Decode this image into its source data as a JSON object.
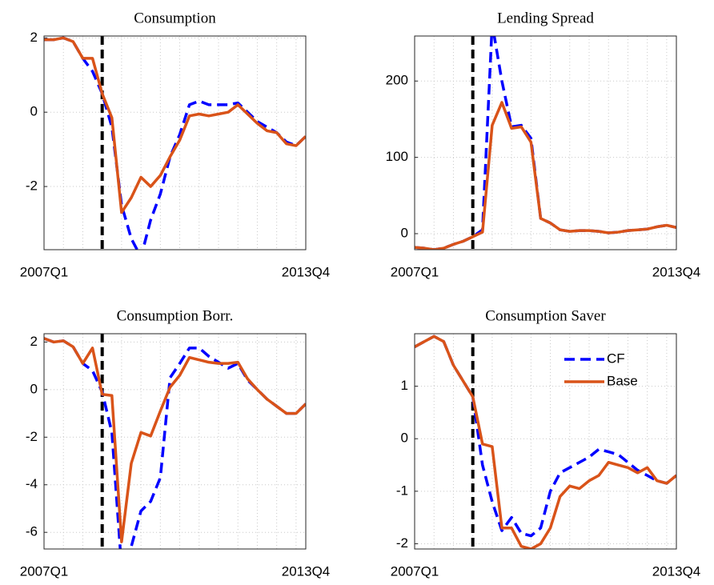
{
  "chart_data": [
    {
      "type": "line",
      "title": "Consumption",
      "categories": [
        "2007Q1",
        null,
        null,
        null,
        null,
        null,
        null,
        null,
        null,
        null,
        null,
        null,
        null,
        null,
        null,
        null,
        null,
        null,
        null,
        null,
        null,
        null,
        null,
        null,
        null,
        null,
        null,
        "2013Q4"
      ],
      "ylim": [
        -3.7,
        2.05
      ],
      "yticks": [
        -2,
        0,
        2
      ],
      "grid": true,
      "vline_index": 6,
      "vline_color": "#000000",
      "series": [
        {
          "color": "#0000ff",
          "dash": true,
          "values": [
            1.95,
            1.95,
            2.0,
            1.9,
            1.45,
            1.1,
            0.5,
            -0.4,
            -2.5,
            -3.4,
            -3.9,
            -2.9,
            -2.2,
            -1.2,
            -0.6,
            0.2,
            0.3,
            0.2,
            0.2,
            0.2,
            0.25,
            0.0,
            -0.25,
            -0.4,
            -0.55,
            -0.8,
            -0.9,
            -0.65
          ]
        },
        {
          "color": "#d95319",
          "dash": false,
          "values": [
            1.95,
            1.95,
            2.0,
            1.9,
            1.45,
            1.45,
            0.5,
            -0.15,
            -2.7,
            -2.3,
            -1.75,
            -2.0,
            -1.7,
            -1.2,
            -0.75,
            -0.1,
            -0.05,
            -0.1,
            -0.05,
            0.0,
            0.2,
            -0.05,
            -0.3,
            -0.5,
            -0.55,
            -0.85,
            -0.9,
            -0.65
          ]
        }
      ]
    },
    {
      "type": "line",
      "title": "Lending Spread",
      "categories": [
        "2007Q1",
        null,
        null,
        null,
        null,
        null,
        null,
        null,
        null,
        null,
        null,
        null,
        null,
        null,
        null,
        null,
        null,
        null,
        null,
        null,
        null,
        null,
        null,
        null,
        null,
        null,
        null,
        "2013Q4"
      ],
      "ylim": [
        -21,
        259
      ],
      "yticks": [
        0,
        100,
        200
      ],
      "grid": true,
      "vline_index": 6,
      "vline_color": "#000000",
      "series": [
        {
          "color": "#0000ff",
          "dash": true,
          "values": [
            -18,
            -19,
            -21,
            -19,
            -14,
            -10,
            -4,
            5,
            275,
            200,
            140,
            142,
            125,
            20,
            14,
            5,
            3,
            4,
            4,
            3,
            1,
            2,
            4,
            5,
            6,
            9,
            11,
            8
          ]
        },
        {
          "color": "#d95319",
          "dash": false,
          "values": [
            -18,
            -19,
            -21,
            -19,
            -14,
            -10,
            -4,
            2,
            142,
            172,
            138,
            140,
            120,
            20,
            14,
            5,
            3,
            4,
            4,
            3,
            1,
            2,
            4,
            5,
            6,
            9,
            11,
            8
          ]
        }
      ]
    },
    {
      "type": "line",
      "title": "Consumption Borr.",
      "categories": [
        "2007Q1",
        null,
        null,
        null,
        null,
        null,
        null,
        null,
        null,
        null,
        null,
        null,
        null,
        null,
        null,
        null,
        null,
        null,
        null,
        null,
        null,
        null,
        null,
        null,
        null,
        null,
        null,
        "2013Q4"
      ],
      "ylim": [
        -6.7,
        2.35
      ],
      "yticks": [
        -6,
        -4,
        -2,
        0,
        2
      ],
      "grid": true,
      "vline_index": 6,
      "vline_color": "#000000",
      "series": [
        {
          "color": "#0000ff",
          "dash": true,
          "values": [
            2.15,
            2.0,
            2.05,
            1.8,
            1.1,
            0.8,
            -0.1,
            -1.8,
            -7.5,
            -6.6,
            -5.1,
            -4.7,
            -3.7,
            0.5,
            1.1,
            1.75,
            1.75,
            1.4,
            1.15,
            0.9,
            1.1,
            0.4,
            0.0,
            -0.4,
            -0.7,
            -1.0,
            -1.0,
            -0.6
          ]
        },
        {
          "color": "#d95319",
          "dash": false,
          "values": [
            2.15,
            2.0,
            2.05,
            1.8,
            1.1,
            1.75,
            -0.2,
            -0.25,
            -6.4,
            -3.1,
            -1.8,
            -1.95,
            -0.9,
            0.1,
            0.6,
            1.35,
            1.25,
            1.15,
            1.1,
            1.1,
            1.15,
            0.45,
            0.0,
            -0.4,
            -0.7,
            -1.0,
            -1.0,
            -0.6
          ]
        }
      ]
    },
    {
      "type": "line",
      "title": "Consumption Saver",
      "categories": [
        "2007Q1",
        null,
        null,
        null,
        null,
        null,
        null,
        null,
        null,
        null,
        null,
        null,
        null,
        null,
        null,
        null,
        null,
        null,
        null,
        null,
        null,
        null,
        null,
        null,
        null,
        null,
        null,
        "2013Q4"
      ],
      "ylim": [
        -2.1,
        2.0
      ],
      "yticks": [
        -2,
        -1,
        0,
        1
      ],
      "grid": true,
      "vline_index": 6,
      "vline_color": "#000000",
      "legend": "northeast",
      "series": [
        {
          "name": "CF",
          "color": "#0000ff",
          "dash": true,
          "values": [
            1.75,
            1.85,
            1.95,
            1.85,
            1.4,
            1.1,
            0.8,
            -0.5,
            -1.2,
            -1.75,
            -1.5,
            -1.8,
            -1.85,
            -1.7,
            -1.0,
            -0.65,
            -0.55,
            -0.45,
            -0.35,
            -0.2,
            -0.25,
            -0.3,
            -0.45,
            -0.6,
            -0.7,
            -0.8,
            -0.85,
            -0.7
          ]
        },
        {
          "name": "Base",
          "color": "#d95319",
          "dash": false,
          "values": [
            1.75,
            1.85,
            1.95,
            1.85,
            1.4,
            1.1,
            0.8,
            -0.1,
            -0.15,
            -1.7,
            -1.7,
            -2.05,
            -2.1,
            -2.0,
            -1.7,
            -1.1,
            -0.9,
            -0.95,
            -0.8,
            -0.7,
            -0.45,
            -0.5,
            -0.55,
            -0.65,
            -0.55,
            -0.8,
            -0.85,
            -0.7
          ]
        }
      ]
    }
  ]
}
